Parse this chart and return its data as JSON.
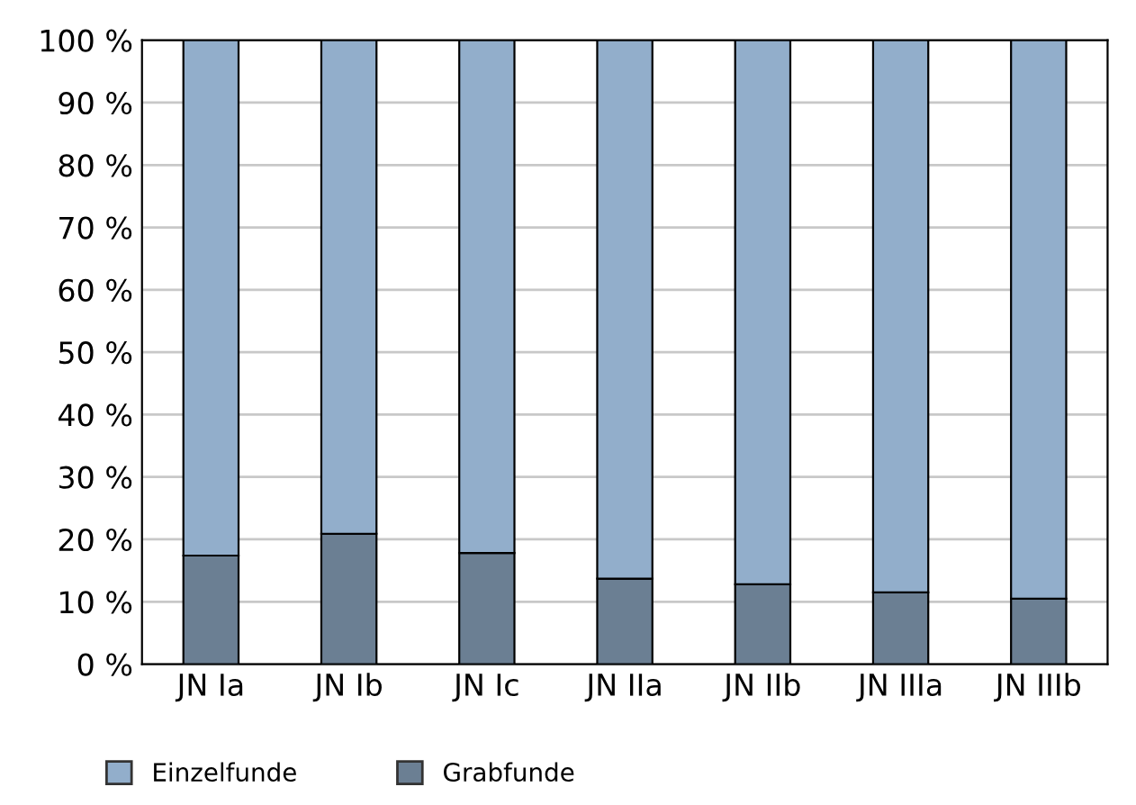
{
  "chart_data": {
    "type": "bar",
    "stacked": true,
    "categories": [
      "JN Ia",
      "JN Ib",
      "JN Ic",
      "JN IIa",
      "JN IIb",
      "JN IIIa",
      "JN IIIb"
    ],
    "series": [
      {
        "name": "Grabfunde",
        "color": "#6b7f93",
        "values": [
          17.4,
          20.9,
          17.8,
          13.7,
          12.8,
          11.5,
          10.5
        ]
      },
      {
        "name": "Einzelfunde",
        "color": "#92aecb",
        "values": [
          82.6,
          79.1,
          82.2,
          86.3,
          87.2,
          88.5,
          89.5
        ]
      }
    ],
    "ylim": [
      0,
      100
    ],
    "yticks": [
      {
        "value": 0,
        "label": "0 %"
      },
      {
        "value": 10,
        "label": "10 %"
      },
      {
        "value": 20,
        "label": "20 %"
      },
      {
        "value": 30,
        "label": "30 %"
      },
      {
        "value": 40,
        "label": "40 %"
      },
      {
        "value": 50,
        "label": "50 %"
      },
      {
        "value": 60,
        "label": "60 %"
      },
      {
        "value": 70,
        "label": "70 %"
      },
      {
        "value": 80,
        "label": "80 %"
      },
      {
        "value": 90,
        "label": "90 %"
      },
      {
        "value": 100,
        "label": "100 %"
      }
    ],
    "grid": "y",
    "legend": "bottom"
  }
}
